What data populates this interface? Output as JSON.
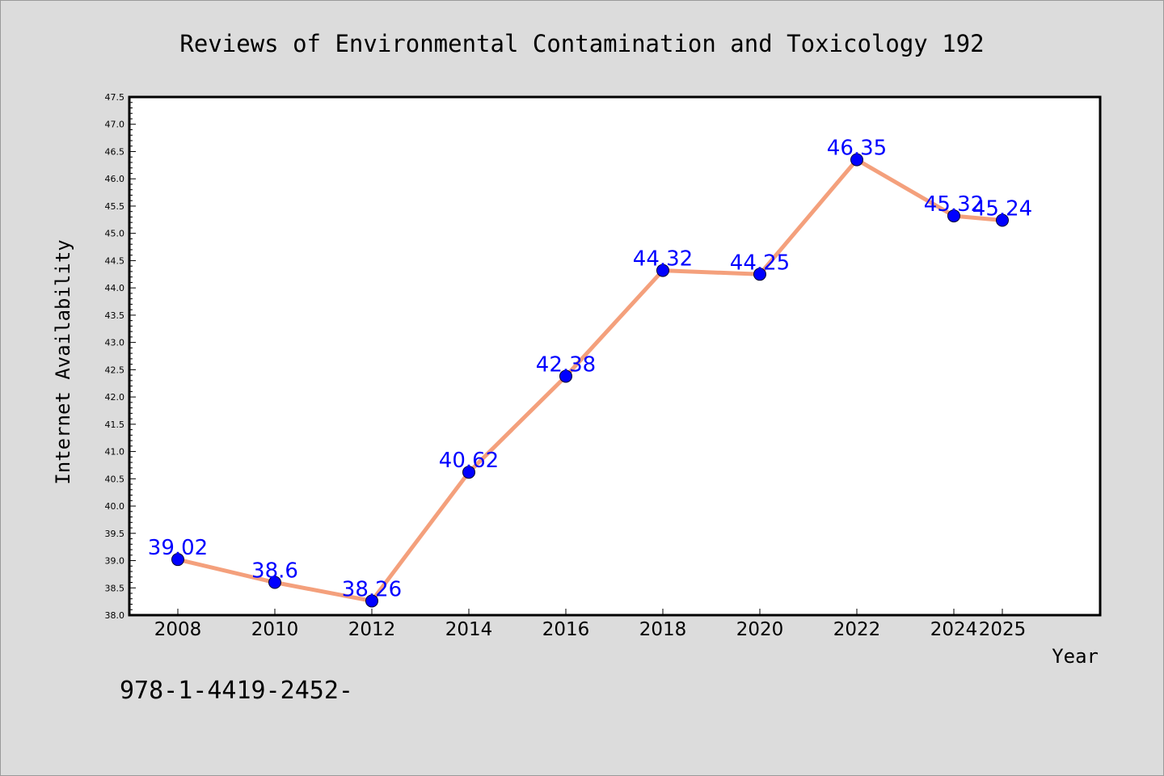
{
  "chart_data": {
    "type": "line",
    "title": "Reviews of Environmental Contamination and Toxicology 192",
    "xlabel": "Year",
    "ylabel": "Internet Availability",
    "footnote": "978-1-4419-2452-",
    "categories": [
      "2008",
      "2010",
      "2012",
      "2014",
      "2016",
      "2018",
      "2020",
      "2022",
      "2024",
      "2025"
    ],
    "series": [
      {
        "values": [
          39.02,
          38.6,
          38.26,
          40.62,
          42.38,
          44.32,
          44.25,
          46.35,
          45.32,
          45.24
        ],
        "labels": [
          "39.02",
          "38.6",
          "38.26",
          "40.62",
          "42.38",
          "44.32",
          "44.25",
          "46.35",
          "45.32",
          "45.24"
        ]
      }
    ],
    "ylim": [
      38.0,
      47.5
    ],
    "ytick_step": 0.5,
    "grid": false,
    "colors": {
      "background": "#dcdcdc",
      "plot_background": "#ffffff",
      "line": "#f4a07c",
      "marker": "#0000ff",
      "data_label": "#0000ff",
      "text": "#000000"
    }
  }
}
